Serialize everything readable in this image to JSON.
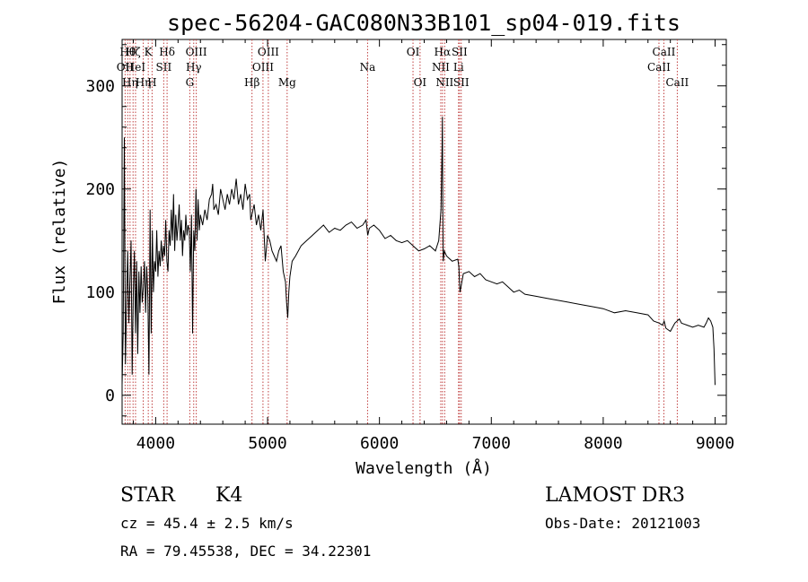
{
  "chart_data": {
    "type": "line",
    "title": "spec-56204-GAC080N33B101_sp04-019.fits",
    "xlabel": "Wavelength (Å)",
    "ylabel": "Flux (relative)",
    "xlim": [
      3700,
      9100
    ],
    "ylim": [
      -28,
      345
    ],
    "xticks": [
      {
        "value": 4000,
        "label": "4000"
      },
      {
        "value": 5000,
        "label": "5000"
      },
      {
        "value": 6000,
        "label": "6000"
      },
      {
        "value": 7000,
        "label": "7000"
      },
      {
        "value": 8000,
        "label": "8000"
      },
      {
        "value": 9000,
        "label": "9000"
      }
    ],
    "yticks": [
      {
        "value": 0,
        "label": "0"
      },
      {
        "value": 100,
        "label": "100"
      },
      {
        "value": 200,
        "label": "200"
      },
      {
        "value": 300,
        "label": "300"
      }
    ],
    "series": [
      {
        "name": "flux",
        "color": "#000000",
        "x": [
          3700,
          3710,
          3720,
          3730,
          3740,
          3750,
          3760,
          3770,
          3780,
          3790,
          3800,
          3810,
          3820,
          3830,
          3840,
          3850,
          3860,
          3870,
          3880,
          3890,
          3900,
          3910,
          3920,
          3930,
          3940,
          3950,
          3960,
          3970,
          3980,
          3990,
          4000,
          4010,
          4020,
          4030,
          4040,
          4050,
          4060,
          4070,
          4080,
          4090,
          4100,
          4110,
          4120,
          4130,
          4140,
          4150,
          4160,
          4170,
          4180,
          4190,
          4200,
          4210,
          4220,
          4230,
          4240,
          4250,
          4260,
          4270,
          4280,
          4290,
          4300,
          4310,
          4320,
          4330,
          4340,
          4350,
          4360,
          4370,
          4380,
          4390,
          4400,
          4420,
          4440,
          4460,
          4480,
          4500,
          4510,
          4520,
          4540,
          4560,
          4580,
          4600,
          4620,
          4640,
          4660,
          4680,
          4700,
          4720,
          4740,
          4760,
          4780,
          4800,
          4820,
          4840,
          4850,
          4860,
          4880,
          4900,
          4920,
          4940,
          4960,
          4980,
          5000,
          5020,
          5040,
          5060,
          5080,
          5100,
          5120,
          5140,
          5160,
          5170,
          5180,
          5190,
          5200,
          5220,
          5250,
          5300,
          5350,
          5400,
          5450,
          5500,
          5550,
          5600,
          5650,
          5700,
          5750,
          5800,
          5850,
          5880,
          5895,
          5910,
          5950,
          6000,
          6050,
          6100,
          6150,
          6200,
          6250,
          6300,
          6350,
          6400,
          6450,
          6500,
          6530,
          6550,
          6560,
          6563,
          6566,
          6570,
          6580,
          6600,
          6650,
          6700,
          6710,
          6715,
          6720,
          6750,
          6800,
          6850,
          6900,
          6950,
          7000,
          7050,
          7100,
          7150,
          7200,
          7250,
          7300,
          7400,
          7500,
          7600,
          7700,
          7800,
          7900,
          8000,
          8100,
          8200,
          8300,
          8400,
          8450,
          8500,
          8530,
          8545,
          8560,
          8600,
          8640,
          8660,
          8680,
          8700,
          8750,
          8800,
          8850,
          8900,
          8920,
          8940,
          8960,
          8980,
          8990,
          9000
        ],
        "y": [
          10,
          60,
          250,
          30,
          90,
          140,
          70,
          110,
          150,
          20,
          100,
          140,
          60,
          130,
          40,
          120,
          80,
          125,
          90,
          105,
          130,
          80,
          125,
          95,
          20,
          180,
          60,
          160,
          100,
          130,
          120,
          160,
          115,
          140,
          125,
          150,
          130,
          145,
          135,
          170,
          130,
          120,
          160,
          145,
          180,
          150,
          195,
          140,
          175,
          150,
          165,
          185,
          150,
          170,
          135,
          160,
          150,
          175,
          155,
          165,
          160,
          120,
          175,
          60,
          160,
          140,
          200,
          150,
          190,
          160,
          175,
          165,
          180,
          170,
          190,
          195,
          205,
          180,
          185,
          175,
          200,
          190,
          180,
          195,
          185,
          200,
          190,
          210,
          185,
          195,
          180,
          205,
          190,
          195,
          170,
          175,
          185,
          165,
          175,
          160,
          180,
          130,
          155,
          150,
          140,
          135,
          130,
          140,
          145,
          120,
          110,
          90,
          75,
          100,
          115,
          130,
          135,
          145,
          150,
          155,
          160,
          165,
          158,
          162,
          160,
          165,
          168,
          162,
          165,
          170,
          155,
          162,
          165,
          160,
          152,
          155,
          150,
          148,
          150,
          145,
          140,
          142,
          145,
          140,
          150,
          180,
          240,
          270,
          180,
          130,
          140,
          135,
          130,
          132,
          125,
          110,
          100,
          118,
          120,
          115,
          118,
          112,
          110,
          108,
          110,
          105,
          100,
          102,
          98,
          96,
          94,
          92,
          90,
          88,
          86,
          84,
          80,
          82,
          80,
          78,
          72,
          70,
          68,
          72,
          65,
          62,
          70,
          72,
          74,
          70,
          68,
          66,
          68,
          66,
          70,
          75,
          72,
          66,
          45,
          10
        ]
      }
    ],
    "line_markers": [
      {
        "wavelength": 3727,
        "label": "OII",
        "row": 2
      },
      {
        "wavelength": 3750,
        "label": "Hθ",
        "row": 1
      },
      {
        "wavelength": 3771,
        "label": "Hη",
        "row": 3
      },
      {
        "wavelength": 3798,
        "label": "Hζ",
        "row": 1
      },
      {
        "wavelength": 3820,
        "label": "HeI",
        "row": 2
      },
      {
        "wavelength": 3889,
        "label": "Hη",
        "row": 3
      },
      {
        "wavelength": 3934,
        "label": "K",
        "row": 1
      },
      {
        "wavelength": 3968,
        "label": "H",
        "row": 3
      },
      {
        "wavelength": 4072,
        "label": "SII",
        "row": 2
      },
      {
        "wavelength": 4102,
        "label": "Hδ",
        "row": 1
      },
      {
        "wavelength": 4305,
        "label": "G",
        "row": 3
      },
      {
        "wavelength": 4340,
        "label": "Hγ",
        "row": 2
      },
      {
        "wavelength": 4363,
        "label": "OIII",
        "row": 1
      },
      {
        "wavelength": 4861,
        "label": "Hβ",
        "row": 3
      },
      {
        "wavelength": 4959,
        "label": "OIII",
        "row": 2
      },
      {
        "wavelength": 5007,
        "label": "OIII",
        "row": 1
      },
      {
        "wavelength": 5175,
        "label": "Mg",
        "row": 3
      },
      {
        "wavelength": 5894,
        "label": "Na",
        "row": 2
      },
      {
        "wavelength": 6300,
        "label": "OI",
        "row": 1
      },
      {
        "wavelength": 6363,
        "label": "OI",
        "row": 3
      },
      {
        "wavelength": 6548,
        "label": "NII",
        "row": 2
      },
      {
        "wavelength": 6563,
        "label": "Hα",
        "row": 1
      },
      {
        "wavelength": 6583,
        "label": "NII",
        "row": 3
      },
      {
        "wavelength": 6707,
        "label": "Li",
        "row": 2
      },
      {
        "wavelength": 6716,
        "label": "SII",
        "row": 1
      },
      {
        "wavelength": 6731,
        "label": "SII",
        "row": 3
      },
      {
        "wavelength": 8498,
        "label": "CaII",
        "row": 2
      },
      {
        "wavelength": 8542,
        "label": "CaII",
        "row": 1
      },
      {
        "wavelength": 8662,
        "label": "CaII",
        "row": 3
      }
    ],
    "marker_color": "#c04040"
  },
  "info": {
    "class": "STAR",
    "subclass": "K4",
    "survey": "LAMOST DR3",
    "cz": "cz = 45.4 ± 2.5 km/s",
    "obs_date": "Obs-Date: 20121003",
    "coords": "RA =  79.45538, DEC =  34.22301"
  }
}
